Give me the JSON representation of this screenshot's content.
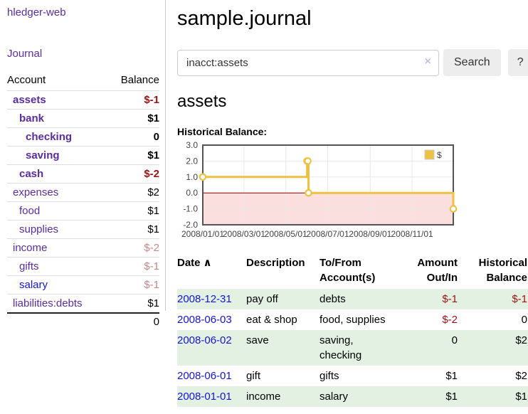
{
  "sidebar": {
    "app_title": "hledger-web",
    "journal_link": "Journal",
    "accounts_table": {
      "headers": [
        "Account",
        "Balance"
      ],
      "rows": [
        {
          "account": "assets",
          "balance": "$-1",
          "indent": 1,
          "bold": true,
          "balance_style": "neg"
        },
        {
          "account": "bank",
          "balance": "$1",
          "indent": 2,
          "bold": true,
          "balance_style": "pos"
        },
        {
          "account": "checking",
          "balance": "0",
          "indent": 3,
          "bold": true,
          "balance_style": "pos"
        },
        {
          "account": "saving",
          "balance": "$1",
          "indent": 3,
          "bold": true,
          "balance_style": "pos"
        },
        {
          "account": "cash",
          "balance": "$-2",
          "indent": 2,
          "bold": true,
          "balance_style": "neg"
        },
        {
          "account": "expenses",
          "balance": "$2",
          "indent": 1,
          "bold": false,
          "balance_style": "pos"
        },
        {
          "account": "food",
          "balance": "$1",
          "indent": 2,
          "bold": false,
          "balance_style": "pos"
        },
        {
          "account": "supplies",
          "balance": "$1",
          "indent": 2,
          "bold": false,
          "balance_style": "pos"
        },
        {
          "account": "income",
          "balance": "$-2",
          "indent": 1,
          "bold": false,
          "balance_style": "neg-muted"
        },
        {
          "account": "gifts",
          "balance": "$-1",
          "indent": 2,
          "bold": false,
          "balance_style": "neg-muted"
        },
        {
          "account": "salary",
          "balance": "$-1",
          "indent": 2,
          "bold": false,
          "balance_style": "neg-muted",
          "link_style": "unvisited"
        },
        {
          "account": "liabilities:debts",
          "balance": "$1",
          "indent": 1,
          "bold": false,
          "balance_style": "pos"
        }
      ],
      "total": "0"
    }
  },
  "header": {
    "title": "sample.journal"
  },
  "search": {
    "query": "inacct:assets",
    "clear_icon": "×",
    "search_label": "Search",
    "help_label": "?"
  },
  "main": {
    "account_heading": "assets"
  },
  "chart_data": {
    "type": "line",
    "title": "Historical Balance:",
    "x_range": [
      "2008/01/01",
      "2008/12/31"
    ],
    "ylim": [
      -2,
      3
    ],
    "y_ticks": [
      "3.0",
      "2.0",
      "1.0",
      "0.0",
      "-1.0",
      "-2.0"
    ],
    "x_ticks": [
      "2008/01/01",
      "2008/03/01",
      "2008/05/01",
      "2008/07/01",
      "2008/09/01",
      "2008/11/01"
    ],
    "series": [
      {
        "name": "$",
        "color": "#edc240",
        "step": true,
        "points": [
          [
            "2008-01-01",
            1
          ],
          [
            "2008-06-01",
            2
          ],
          [
            "2008-06-02",
            2
          ],
          [
            "2008-06-03",
            0
          ],
          [
            "2008-12-31",
            -1
          ]
        ]
      }
    ],
    "negative_region_color": "#fbdede",
    "zero_line_color": "#8b0000",
    "grid": true,
    "legend": {
      "position": "top-right",
      "label": "$"
    }
  },
  "register": {
    "headers": [
      {
        "label": "Date",
        "sort_icon": "∧"
      },
      {
        "label": "Description"
      },
      {
        "label": "To/From Account(s)"
      },
      {
        "label": "Amount Out/In",
        "align": "right"
      },
      {
        "label": "Historical Balance",
        "align": "right"
      }
    ],
    "rows": [
      {
        "date": "2008-12-31",
        "description": "pay off",
        "accounts": "debts",
        "amount": "$-1",
        "amount_neg": true,
        "balance": "$-1",
        "balance_neg": true
      },
      {
        "date": "2008-06-03",
        "description": "eat & shop",
        "accounts": "food, supplies",
        "amount": "$-2",
        "amount_neg": true,
        "balance": "0",
        "balance_neg": false
      },
      {
        "date": "2008-06-02",
        "description": "save",
        "accounts": "saving, checking",
        "amount": "0",
        "amount_neg": false,
        "balance": "$2",
        "balance_neg": false
      },
      {
        "date": "2008-06-01",
        "description": "gift",
        "accounts": "gifts",
        "amount": "$1",
        "amount_neg": false,
        "balance": "$2",
        "balance_neg": false
      },
      {
        "date": "2008-01-01",
        "description": "income",
        "accounts": "salary",
        "amount": "$1",
        "amount_neg": false,
        "balance": "$1",
        "balance_neg": false
      }
    ]
  }
}
